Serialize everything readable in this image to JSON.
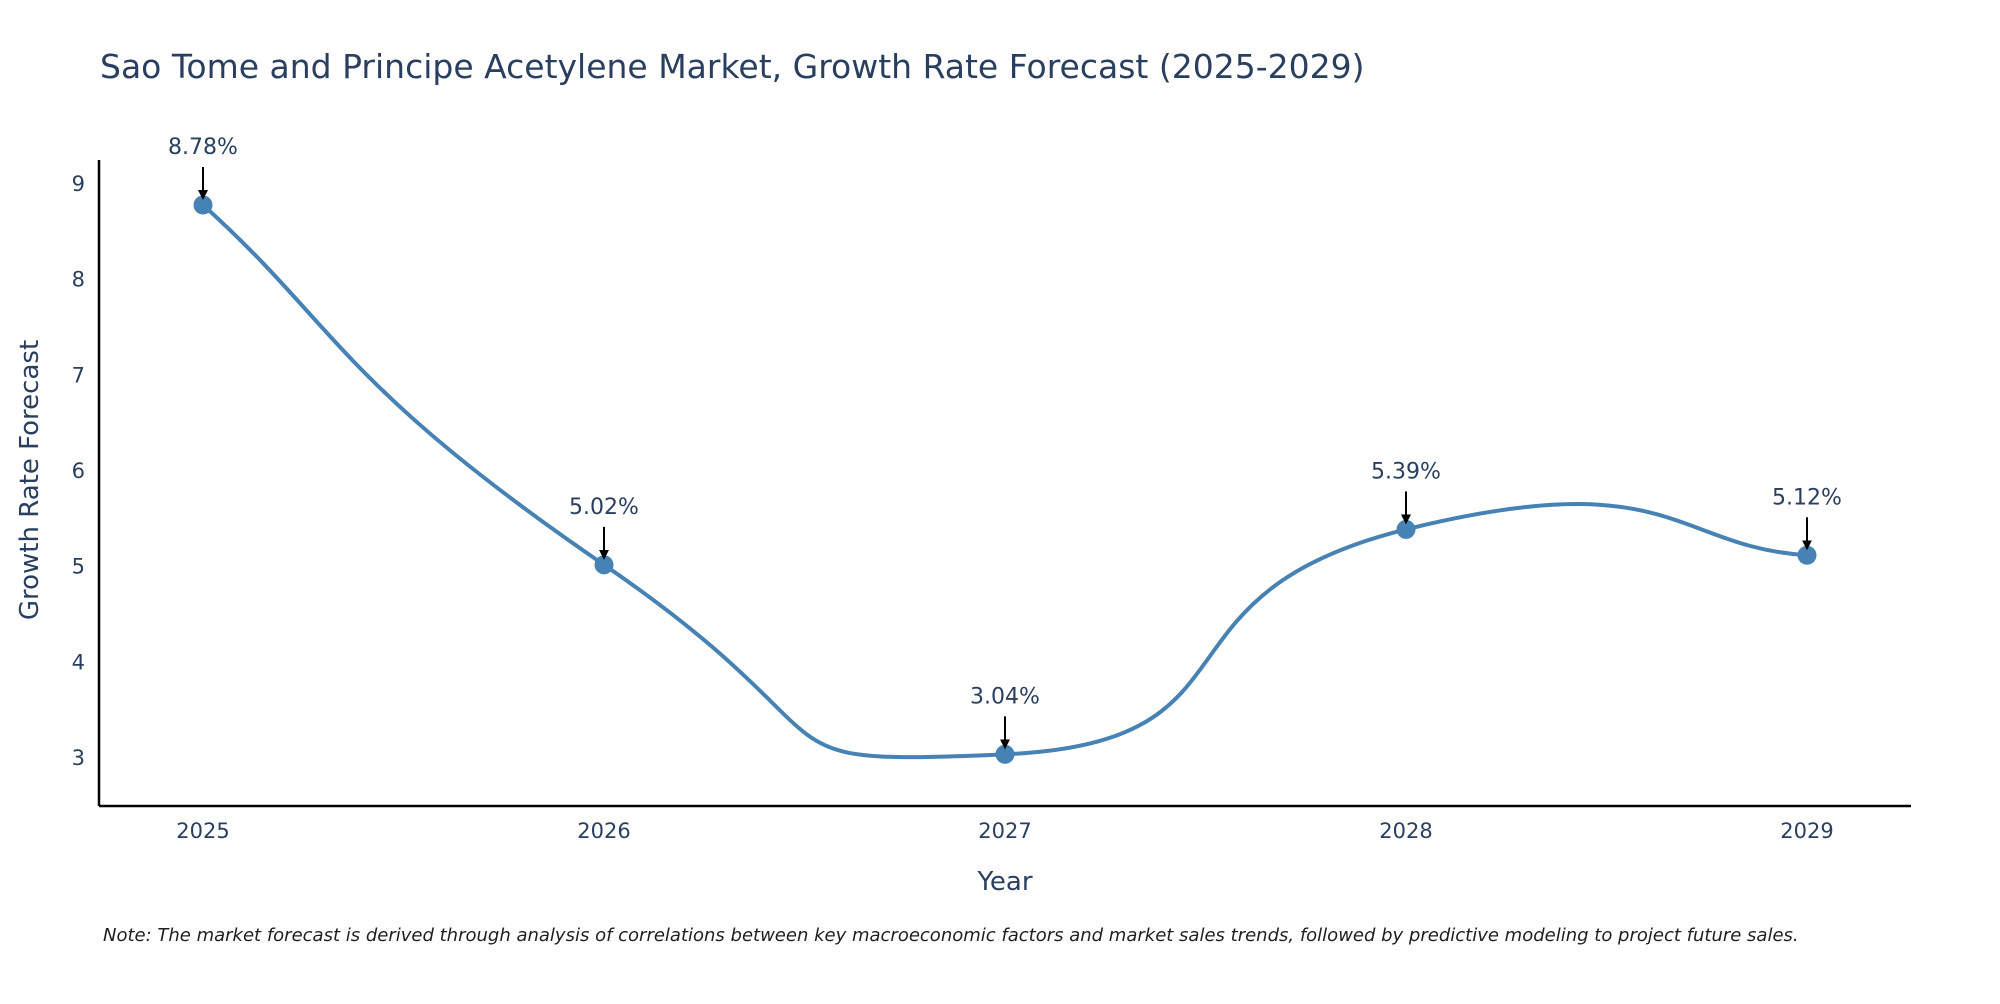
{
  "chart_data": {
    "type": "line",
    "title": "Sao Tome and Principe Acetylene Market, Growth Rate Forecast (2025-2029)",
    "xlabel": "Year",
    "ylabel": "Growth Rate Forecast",
    "categories": [
      "2025",
      "2026",
      "2027",
      "2028",
      "2029"
    ],
    "values": [
      8.78,
      5.02,
      3.04,
      5.39,
      5.12
    ],
    "data_labels": [
      "8.78%",
      "5.02%",
      "3.04%",
      "5.39%",
      "5.12%"
    ],
    "yticks": [
      3,
      4,
      5,
      6,
      7,
      8,
      9
    ],
    "ylim": [
      2.5,
      9.25
    ],
    "note": "Note: The market forecast is derived through analysis of correlations between key macroeconomic factors and market sales trends, followed by predictive modeling to project future sales.",
    "colors": {
      "line": "#4682b4",
      "marker": "#4682b4",
      "axis": "#000000",
      "text": "#2a3f5f",
      "arrow": "#000000"
    },
    "grid": false,
    "legend": "none"
  }
}
